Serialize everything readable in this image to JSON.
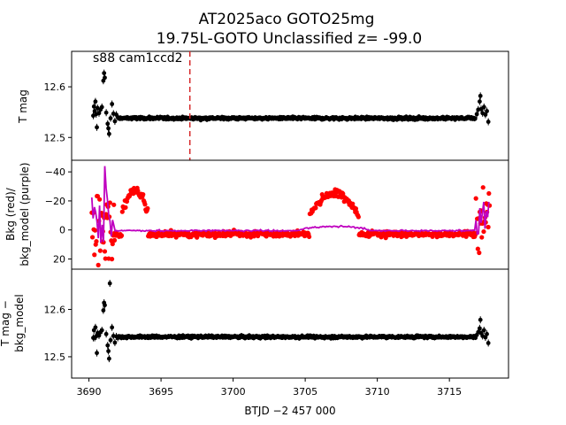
{
  "chart_data": [
    {
      "type": "scatter",
      "panel": "top",
      "title_line1": "AT2025aco  GOTO25mg",
      "title_line2": "19.75L-GOTO Unclassified z= -99.0",
      "annotation": "s88 cam1ccd2",
      "ylabel": "T mag",
      "y_inverted": true,
      "ylim": [
        12.67,
        12.455
      ],
      "yticks": [
        "12.5",
        "12.6"
      ],
      "ytick_values": [
        12.5,
        12.6
      ],
      "marker_line_x": 3697.0,
      "colors": {
        "points": "#000000",
        "marker_line": "#d62728"
      },
      "series": [
        {
          "values": [
            [
              3690.3,
              12.543
            ],
            [
              3690.35,
              12.561
            ],
            [
              3690.4,
              12.552
            ],
            [
              3690.45,
              12.571
            ],
            [
              3690.5,
              12.546
            ],
            [
              3690.55,
              12.52
            ],
            [
              3690.6,
              12.558
            ],
            [
              3690.7,
              12.548
            ],
            [
              3690.8,
              12.555
            ],
            [
              3690.9,
              12.56
            ],
            [
              3691.0,
              12.612
            ],
            [
              3691.05,
              12.627
            ],
            [
              3691.1,
              12.618
            ],
            [
              3691.2,
              12.549
            ],
            [
              3691.3,
              12.527
            ],
            [
              3691.35,
              12.518
            ],
            [
              3691.4,
              12.507
            ],
            [
              3691.5,
              12.538
            ],
            [
              3691.6,
              12.566
            ],
            [
              3691.7,
              12.547
            ],
            [
              3691.8,
              12.532
            ],
            [
              3691.9,
              12.545
            ],
            [
              3692.0,
              12.54
            ]
          ],
          "baseline": 12.538,
          "scatter": 0.006,
          "range": [
            3692.0,
            3716.8
          ],
          "tail": [
            [
              3716.9,
              12.546
            ],
            [
              3717.0,
              12.555
            ],
            [
              3717.1,
              12.571
            ],
            [
              3717.15,
              12.582
            ],
            [
              3717.2,
              12.556
            ],
            [
              3717.3,
              12.548
            ],
            [
              3717.4,
              12.56
            ],
            [
              3717.5,
              12.545
            ],
            [
              3717.6,
              12.552
            ],
            [
              3717.7,
              12.531
            ]
          ]
        }
      ]
    },
    {
      "type": "scatter",
      "panel": "middle",
      "ylabel_line1": "Bkg (red)/",
      "ylabel_line2": "bkg_model (purple)",
      "ylim": [
        -48,
        27
      ],
      "yticks": [
        "20",
        "0",
        "−20",
        "−40"
      ],
      "ytick_values": [
        20,
        0,
        -20,
        -40
      ],
      "colors": {
        "bkg": "#ff0000",
        "bkg_model": "#bf00bf"
      },
      "series": [
        {
          "name": "Bkg (red)",
          "description": "background flux",
          "baseline": 3,
          "spread": 4
        },
        {
          "name": "bkg_model (purple)",
          "description": "background model",
          "baseline": 0.5
        }
      ],
      "features": {
        "start_spike": [
          3690.2,
          3691.8
        ],
        "dip1": {
          "center": 3693.2,
          "width": 0.9,
          "depth": -27
        },
        "dip2": {
          "center": 3707.0,
          "width": 1.7,
          "depth": -25
        },
        "end_spike": [
          3716.8,
          3717.8
        ],
        "model_min": -44,
        "model_min_x": 3691.1
      }
    },
    {
      "type": "scatter",
      "panel": "bottom",
      "ylabel_line1": "T mag −",
      "ylabel_line2": "bkg_model",
      "y_inverted": true,
      "ylim": [
        12.685,
        12.455
      ],
      "yticks": [
        "12.5",
        "12.6"
      ],
      "ytick_values": [
        12.5,
        12.6
      ],
      "xlabel": "BTJD −2 457 000",
      "xlim": [
        3688.8,
        3719.1
      ],
      "xticks": [
        "3690",
        "3695",
        "3700",
        "3705",
        "3710",
        "3715"
      ],
      "xtick_values": [
        3690,
        3695,
        3700,
        3705,
        3710,
        3715
      ],
      "colors": {
        "points": "#000000"
      },
      "series": [
        {
          "values": [
            [
              3690.3,
              12.54
            ],
            [
              3690.35,
              12.556
            ],
            [
              3690.4,
              12.54
            ],
            [
              3690.45,
              12.562
            ],
            [
              3690.5,
              12.543
            ],
            [
              3690.55,
              12.508
            ],
            [
              3690.6,
              12.55
            ],
            [
              3690.7,
              12.545
            ],
            [
              3690.8,
              12.552
            ],
            [
              3690.9,
              12.556
            ],
            [
              3691.0,
              12.598
            ],
            [
              3691.05,
              12.614
            ],
            [
              3691.1,
              12.609
            ],
            [
              3691.2,
              12.548
            ],
            [
              3691.3,
              12.524
            ],
            [
              3691.35,
              12.512
            ],
            [
              3691.4,
              12.496
            ],
            [
              3691.45,
              12.655
            ],
            [
              3691.5,
              12.535
            ],
            [
              3691.6,
              12.562
            ],
            [
              3691.7,
              12.544
            ],
            [
              3691.8,
              12.53
            ],
            [
              3691.9,
              12.543
            ],
            [
              3692.0,
              12.54
            ]
          ],
          "baseline": 12.542,
          "scatter": 0.006,
          "range": [
            3692.0,
            3716.8
          ],
          "tail": [
            [
              3716.9,
              12.546
            ],
            [
              3717.0,
              12.552
            ],
            [
              3717.1,
              12.56
            ],
            [
              3717.15,
              12.578
            ],
            [
              3717.2,
              12.55
            ],
            [
              3717.3,
              12.544
            ],
            [
              3717.4,
              12.556
            ],
            [
              3717.5,
              12.541
            ],
            [
              3717.6,
              12.548
            ],
            [
              3717.7,
              12.529
            ]
          ]
        }
      ]
    }
  ]
}
